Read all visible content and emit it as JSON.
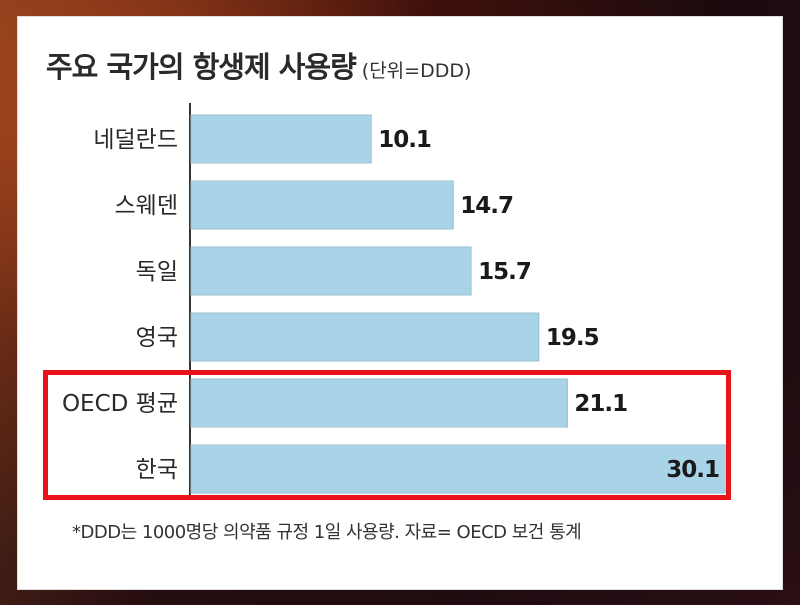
{
  "chart_data": {
    "type": "bar",
    "orientation": "horizontal",
    "title": "주요 국가의 항생제 사용량",
    "unit_label": "(단위=DDD)",
    "categories": [
      "네덜란드",
      "스웨덴",
      "독일",
      "영국",
      "OECD 평균",
      "한국"
    ],
    "values": [
      10.1,
      14.7,
      15.7,
      19.5,
      21.1,
      30.1
    ],
    "value_labels": [
      "10.1",
      "14.7",
      "15.7",
      "19.5",
      "21.1",
      "30.1"
    ],
    "xlim": [
      0,
      30.1
    ],
    "highlighted_categories": [
      "OECD 평균",
      "한국"
    ],
    "bar_color": "#a9d3e6",
    "highlight_color": "#e8141a",
    "grid": false,
    "footnote": "*DDD는 1000명당 의약품 규정 1일 사용량. 자료= OECD 보건 통계"
  }
}
